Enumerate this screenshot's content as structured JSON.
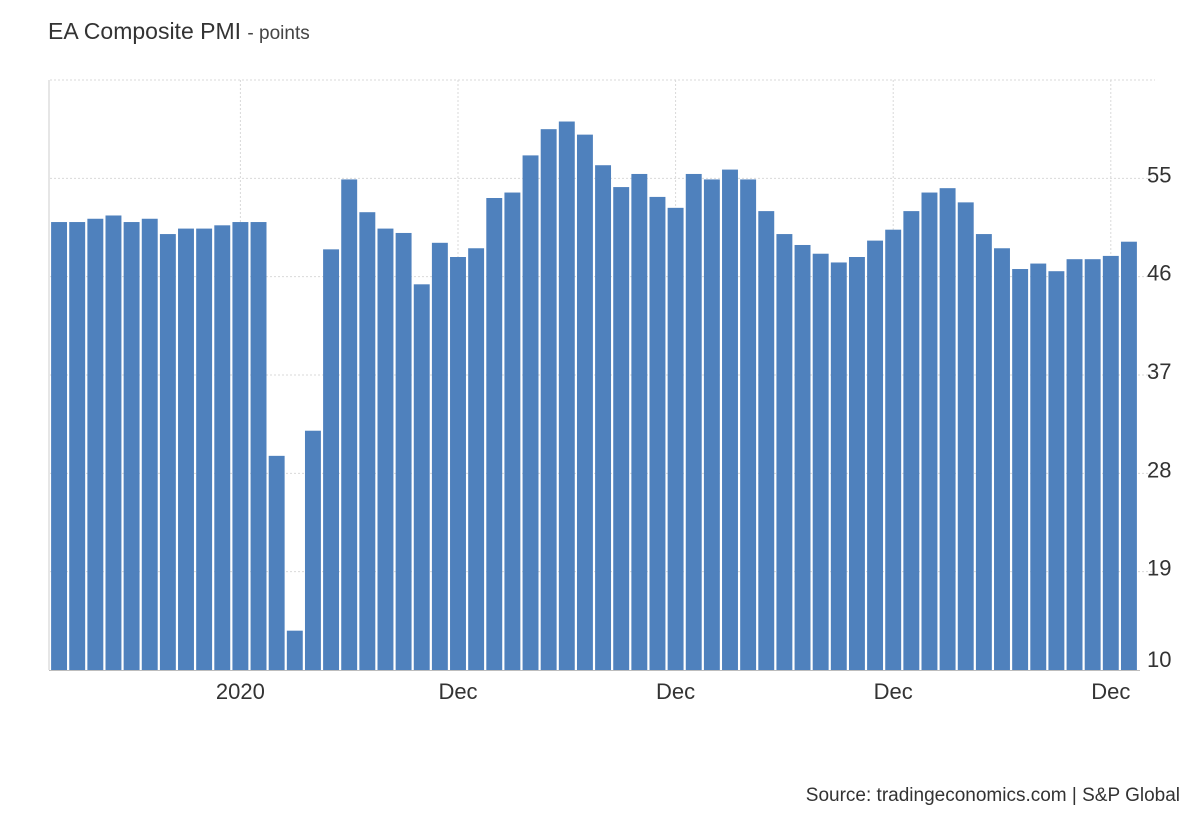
{
  "chart_data": {
    "type": "bar",
    "title": "EA Composite PMI",
    "subtitle": "- points",
    "source": "Source: tradingeconomics.com | S&P Global",
    "ylim": [
      10,
      64
    ],
    "yticks": [
      10,
      19,
      28,
      37,
      46,
      55
    ],
    "grid": true,
    "color": "#4f81bd",
    "x_tick_labels": [
      {
        "index": 10.5,
        "label": "2020"
      },
      {
        "index": 22.5,
        "label": "Dec"
      },
      {
        "index": 34.5,
        "label": "Dec"
      },
      {
        "index": 46.5,
        "label": "Dec"
      },
      {
        "index": 58.5,
        "label": "Dec"
      }
    ],
    "values": [
      51.0,
      51.0,
      51.3,
      51.6,
      51.0,
      51.3,
      49.9,
      50.4,
      50.4,
      50.7,
      51.0,
      51.0,
      29.6,
      13.6,
      31.9,
      48.5,
      54.9,
      51.9,
      50.4,
      50.0,
      45.3,
      49.1,
      47.8,
      48.6,
      53.2,
      53.7,
      57.1,
      59.5,
      60.2,
      59.0,
      56.2,
      54.2,
      55.4,
      53.3,
      52.3,
      55.4,
      54.9,
      55.8,
      54.9,
      52.0,
      49.9,
      48.9,
      48.1,
      47.3,
      47.8,
      49.3,
      50.3,
      52.0,
      53.7,
      54.1,
      52.8,
      49.9,
      48.6,
      46.7,
      47.2,
      46.5,
      47.6,
      47.6,
      47.9,
      49.2
    ]
  }
}
